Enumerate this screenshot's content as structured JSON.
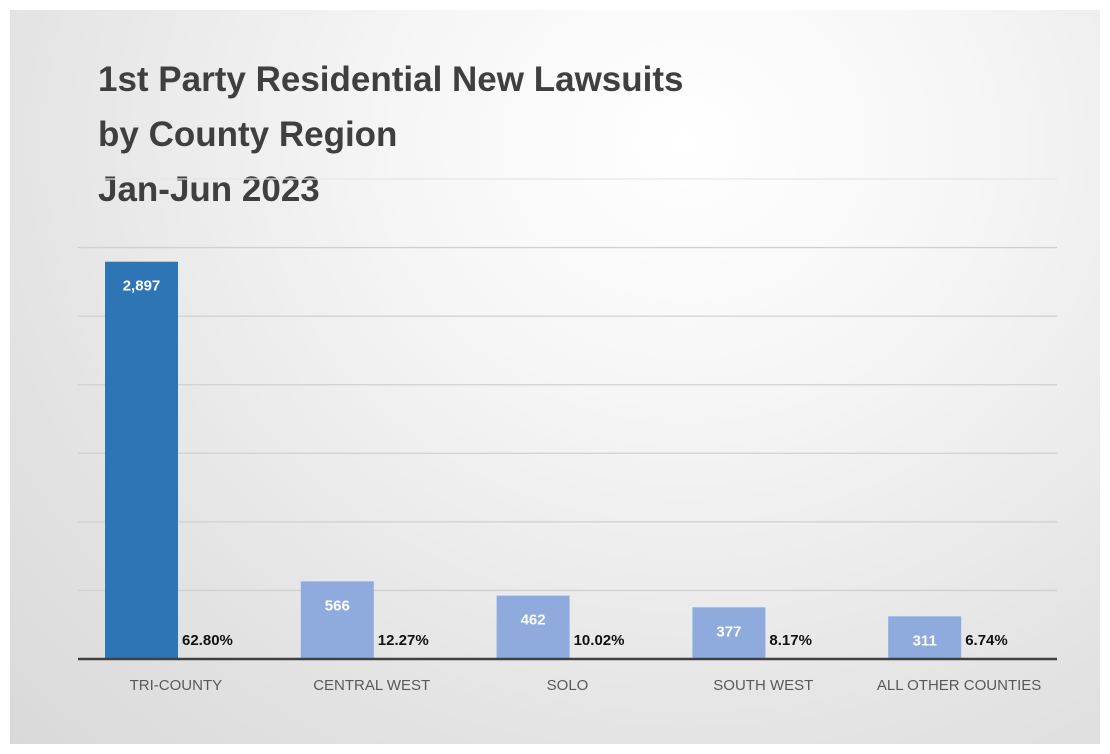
{
  "chart_data": {
    "type": "bar",
    "title_lines": [
      "1st Party Residential New Lawsuits",
      "by County Region",
      "Jan-Jun 2023"
    ],
    "categories": [
      "TRI-COUNTY",
      "CENTRAL WEST",
      "SOLO",
      "SOUTH WEST",
      "ALL OTHER COUNTIES"
    ],
    "values": [
      2897,
      566,
      462,
      377,
      311
    ],
    "value_labels": [
      "2,897",
      "566",
      "462",
      "377",
      "311"
    ],
    "percent_labels": [
      "62.80%",
      "12.27%",
      "10.02%",
      "8.17%",
      "6.74%"
    ],
    "ylim": [
      0,
      3500
    ],
    "grid_step": 500,
    "grid": true,
    "y_tick_labels_shown": false,
    "legend": "none",
    "colors": {
      "highlight_bar": "#2e75b6",
      "other_bars": "#8faadc",
      "axis": "#404040",
      "gridlines": "#d0d0d0"
    }
  }
}
